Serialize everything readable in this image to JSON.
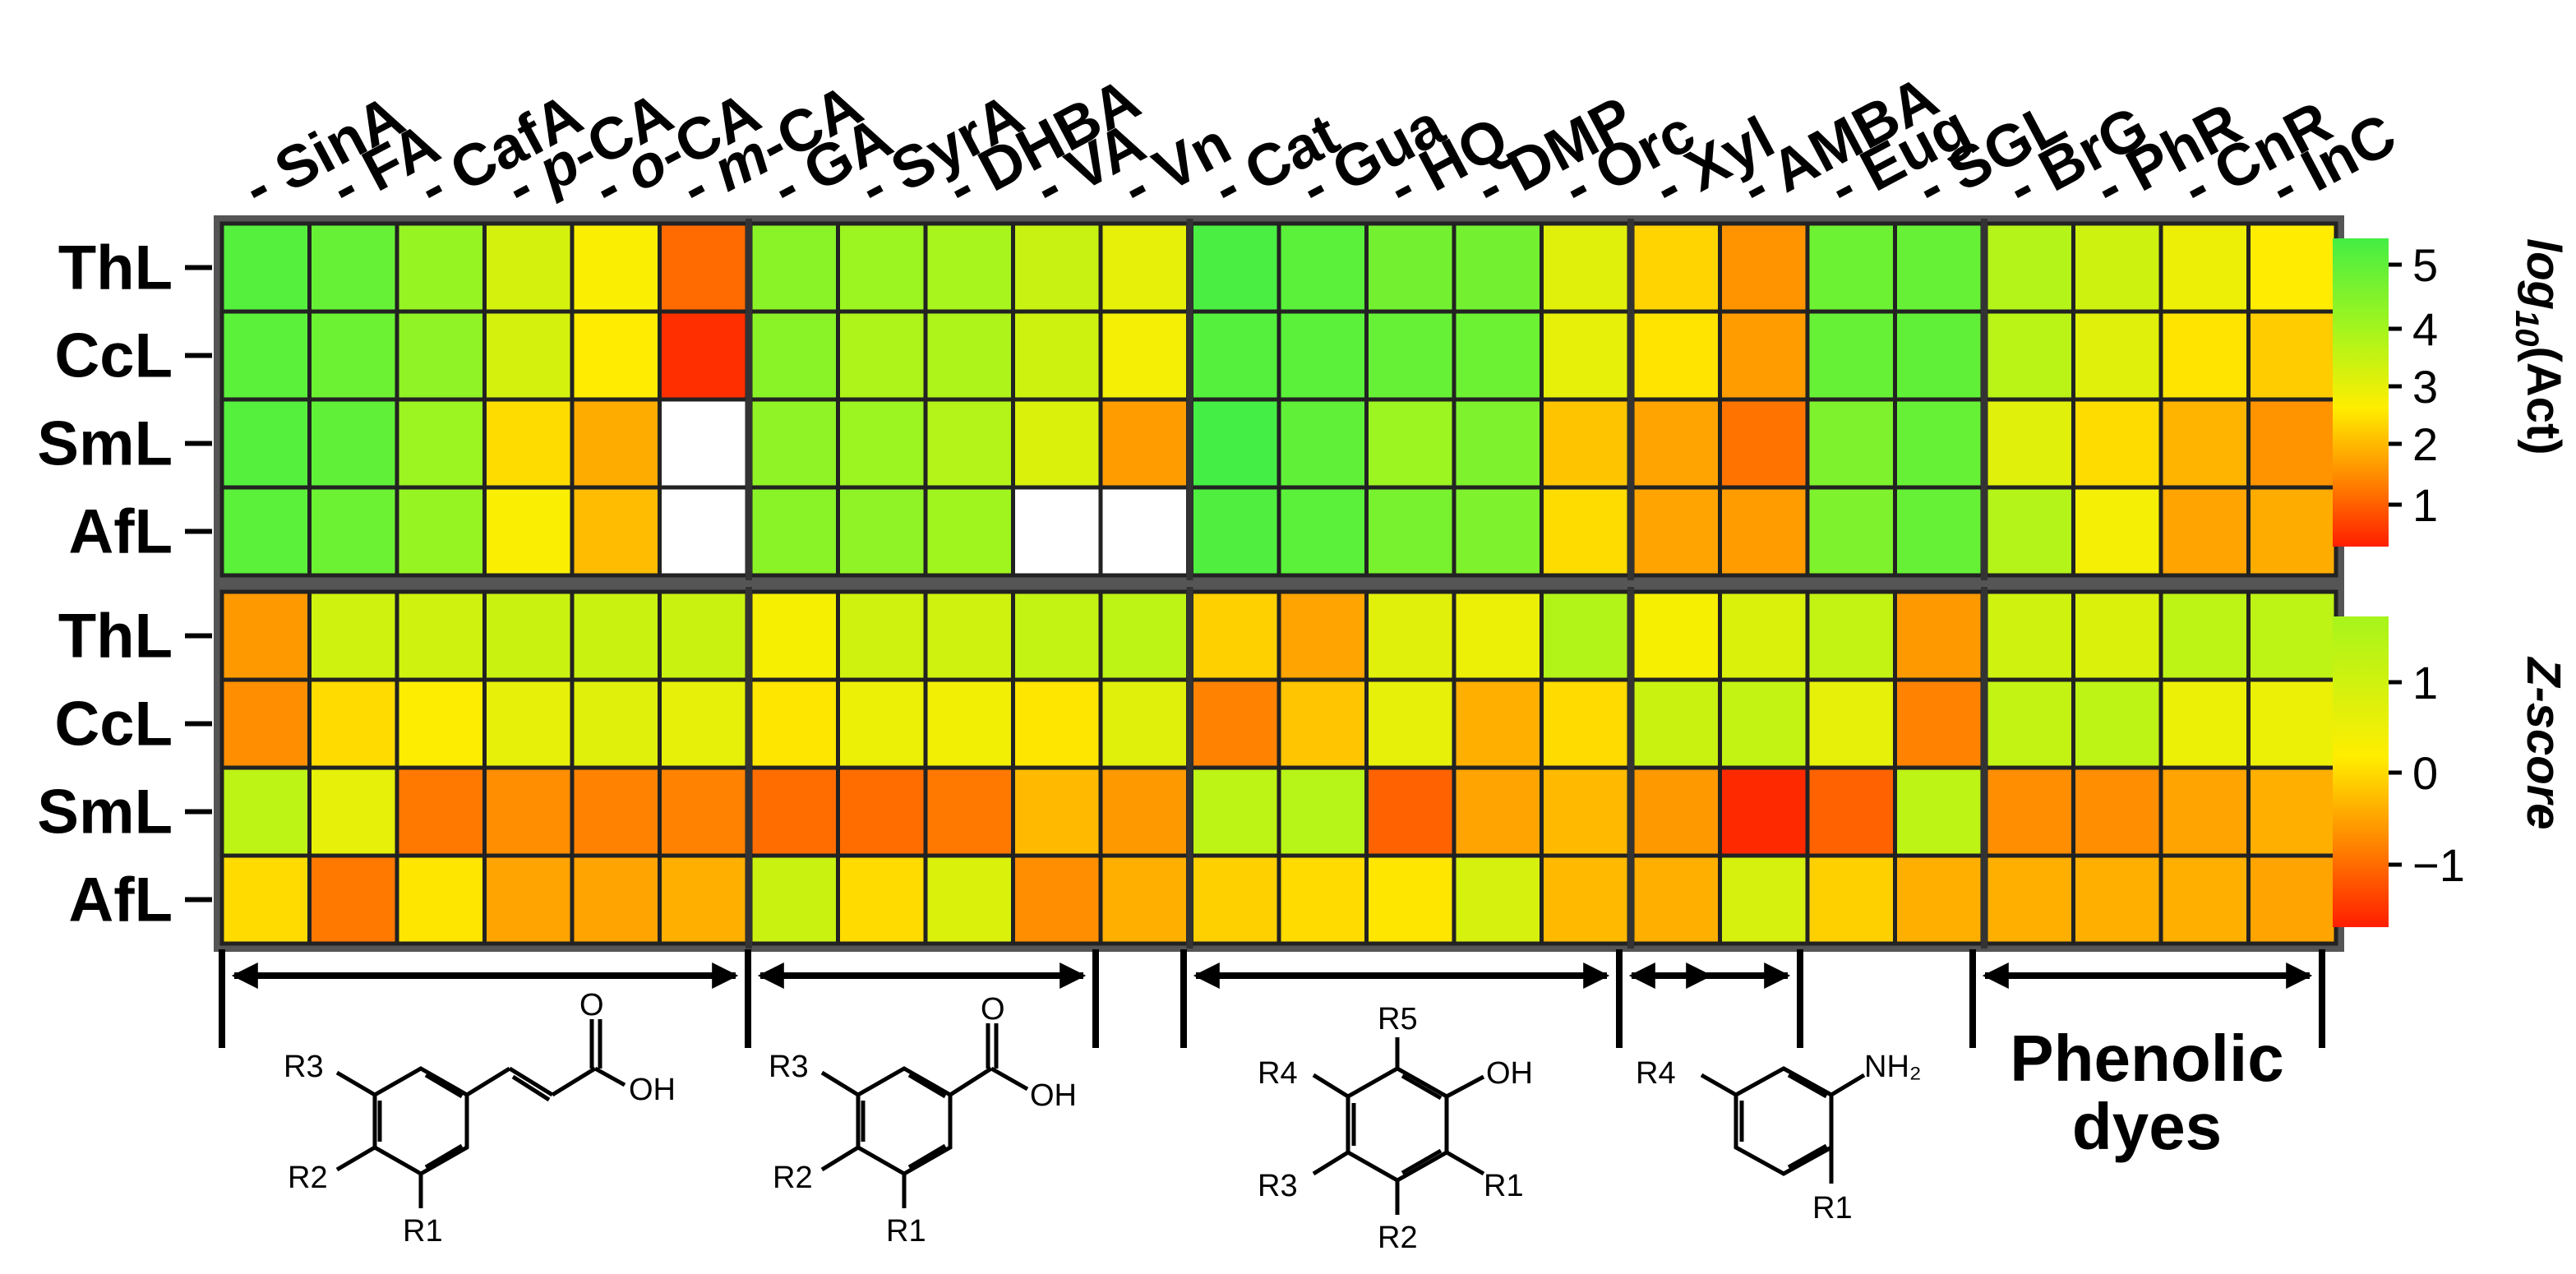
{
  "chart_data": [
    {
      "type": "heatmap",
      "panel": "top",
      "columns": [
        "SinA",
        "FA",
        "CafA",
        "p-CA",
        "o-CA",
        "m-CA",
        "GA",
        "SyrA",
        "DHBA",
        "VA",
        "Vn",
        "Cat",
        "Gua",
        "HQ",
        "DMP",
        "Orc",
        "Xyl",
        "AMBA",
        "Eug",
        "SGL",
        "BrG",
        "PhR",
        "CnR",
        "InC"
      ],
      "rows": [
        "ThL",
        "CcL",
        "SmL",
        "AfL"
      ],
      "values": [
        [
          5.3,
          5.0,
          4.2,
          3.2,
          2.6,
          0.9,
          4.4,
          4.1,
          3.9,
          3.4,
          2.9,
          5.5,
          5.2,
          4.8,
          4.8,
          3.0,
          2.2,
          1.4,
          4.9,
          5.0,
          3.7,
          3.3,
          2.8,
          2.5
        ],
        [
          5.2,
          4.9,
          4.3,
          3.2,
          2.5,
          0.2,
          4.4,
          3.8,
          3.8,
          3.3,
          2.7,
          5.3,
          5.2,
          5.0,
          4.9,
          2.9,
          2.4,
          1.5,
          5.0,
          5.1,
          3.6,
          3.0,
          2.4,
          2.1
        ],
        [
          5.3,
          5.1,
          4.1,
          2.3,
          1.7,
          null,
          4.3,
          4.1,
          3.7,
          3.1,
          1.5,
          5.6,
          5.1,
          4.1,
          4.6,
          2.0,
          1.6,
          1.0,
          4.6,
          5.0,
          3.0,
          2.3,
          1.8,
          1.4
        ],
        [
          5.2,
          4.9,
          4.2,
          2.6,
          1.9,
          null,
          4.4,
          4.3,
          4.0,
          null,
          null,
          5.4,
          5.2,
          4.7,
          4.6,
          2.3,
          1.6,
          1.5,
          4.6,
          5.0,
          3.7,
          2.7,
          1.6,
          1.7
        ]
      ],
      "colorbar": {
        "label_main": "log",
        "label_sub": "10",
        "label_rest": "(Act)",
        "ticks": [
          "5",
          "4",
          "3",
          "2",
          "1"
        ],
        "range": [
          0.0,
          5.6
        ]
      },
      "missing_color": "#ffffff"
    },
    {
      "type": "heatmap",
      "panel": "bottom",
      "columns": [
        "SinA",
        "FA",
        "CafA",
        "p-CA",
        "o-CA",
        "m-CA",
        "GA",
        "SyrA",
        "DHBA",
        "VA",
        "Vn",
        "Cat",
        "Gua",
        "HQ",
        "DMP",
        "Orc",
        "Xyl",
        "AMBA",
        "Eug",
        "SGL",
        "BrG",
        "PhR",
        "CnR",
        "InC"
      ],
      "rows": [
        "ThL",
        "CcL",
        "SmL",
        "AfL"
      ],
      "values": [
        [
          -0.6,
          1.0,
          1.0,
          1.1,
          1.1,
          1.1,
          0.3,
          1.0,
          1.0,
          1.2,
          1.3,
          -0.1,
          -0.5,
          0.7,
          0.5,
          1.5,
          0.3,
          0.8,
          1.2,
          -0.6,
          1.0,
          0.8,
          1.3,
          1.3
        ],
        [
          -0.7,
          0.0,
          0.2,
          0.6,
          0.7,
          0.6,
          0.1,
          0.5,
          0.4,
          0.1,
          0.7,
          -0.8,
          -0.2,
          0.6,
          -0.4,
          0.0,
          1.1,
          1.2,
          0.6,
          -0.8,
          1.2,
          1.3,
          0.5,
          0.5
        ],
        [
          1.3,
          0.6,
          -0.9,
          -0.7,
          -0.8,
          -0.8,
          -1.0,
          -1.0,
          -0.9,
          -0.3,
          -0.6,
          1.3,
          1.4,
          -1.1,
          -0.5,
          -0.3,
          -0.6,
          -1.6,
          -1.1,
          1.3,
          -0.7,
          -0.7,
          -0.5,
          -0.4
        ],
        [
          0.0,
          -0.9,
          0.1,
          -0.5,
          -0.5,
          -0.4,
          1.1,
          0.0,
          0.8,
          -0.7,
          -0.4,
          -0.1,
          0.0,
          0.1,
          0.9,
          -0.3,
          -0.4,
          0.9,
          -0.1,
          -0.4,
          -0.4,
          -0.4,
          -0.4,
          -0.5
        ]
      ],
      "colorbar": {
        "label": "Z-score",
        "ticks": [
          "1",
          "0",
          "−1"
        ],
        "range": [
          -1.7,
          1.7
        ]
      }
    }
  ],
  "colors": {
    "red": "#ff1e00",
    "orange": "#ff7e00",
    "yellow": "#ffee00",
    "lime": "#a6f51c",
    "green": "#44ee44"
  },
  "groups": [
    {
      "name": "cinnamic-acids",
      "labels": [
        "R3",
        "R2",
        "R1",
        "O",
        "OH"
      ]
    },
    {
      "name": "benzoic-acids",
      "labels": [
        "R3",
        "R2",
        "R1",
        "O",
        "OH"
      ]
    },
    {
      "name": "phenols",
      "labels": [
        "R5",
        "R4",
        "R3",
        "R2",
        "R1",
        "OH"
      ]
    },
    {
      "name": "anilines",
      "labels": [
        "R4",
        "R1",
        "NH₂"
      ]
    },
    {
      "name": "phenolic-dyes",
      "line1": "Phenolic",
      "line2": "dyes"
    }
  ]
}
